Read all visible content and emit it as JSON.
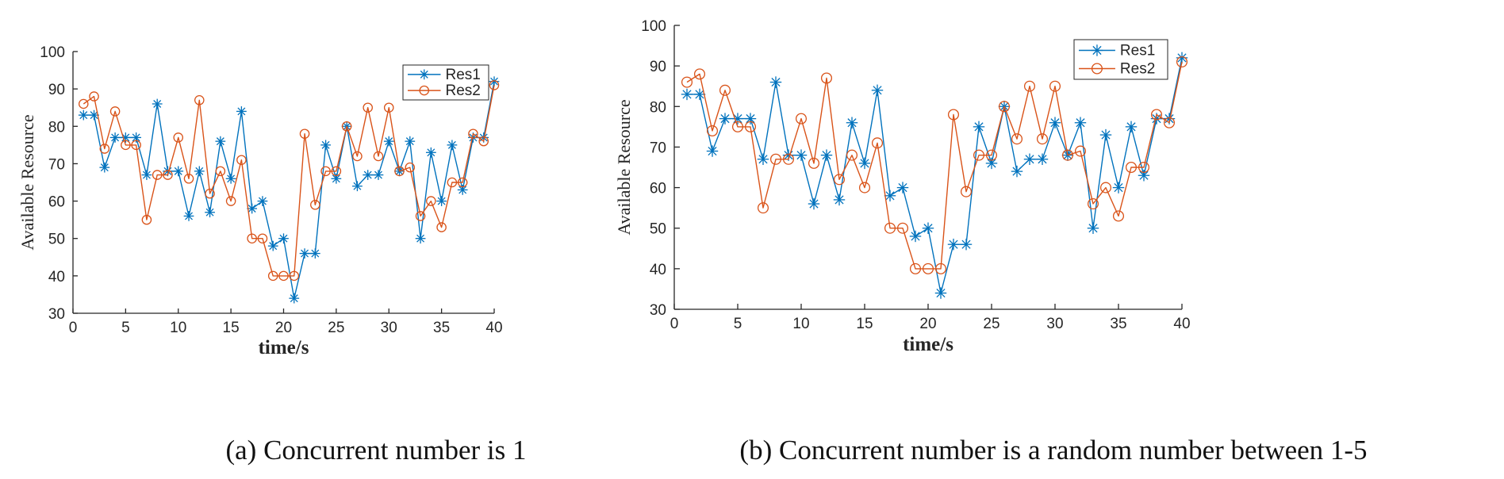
{
  "chart_data": [
    {
      "type": "line",
      "caption": "(a)  Concurrent number is 1",
      "xlabel": "time/s",
      "ylabel": "Available  Resource",
      "xlim": [
        0,
        40
      ],
      "ylim": [
        30,
        100
      ],
      "xticks": [
        "0",
        "5",
        "10",
        "15",
        "20",
        "25",
        "30",
        "35",
        "40"
      ],
      "yticks": [
        "30",
        "40",
        "50",
        "60",
        "70",
        "80",
        "90",
        "100"
      ],
      "grid": false,
      "legend_position": "top-right",
      "x": [
        1,
        2,
        3,
        4,
        5,
        6,
        7,
        8,
        9,
        10,
        11,
        12,
        13,
        14,
        15,
        16,
        17,
        18,
        19,
        20,
        21,
        22,
        23,
        24,
        25,
        26,
        27,
        28,
        29,
        30,
        31,
        32,
        33,
        34,
        35,
        36,
        37,
        38,
        39,
        40
      ],
      "series": [
        {
          "name": "Res1",
          "color": "#0072BD",
          "marker": "asterisk",
          "values": [
            83,
            83,
            69,
            77,
            77,
            77,
            67,
            86,
            68,
            68,
            56,
            68,
            57,
            76,
            66,
            84,
            58,
            60,
            48,
            50,
            34,
            46,
            46,
            75,
            66,
            80,
            64,
            67,
            67,
            76,
            68,
            76,
            50,
            73,
            60,
            75,
            63,
            77,
            77,
            92
          ]
        },
        {
          "name": "Res2",
          "color": "#D95319",
          "marker": "circle",
          "values": [
            86,
            88,
            74,
            84,
            75,
            75,
            55,
            67,
            67,
            77,
            66,
            87,
            62,
            68,
            60,
            71,
            50,
            50,
            40,
            40,
            40,
            78,
            59,
            68,
            68,
            80,
            72,
            85,
            72,
            85,
            68,
            69,
            56,
            60,
            53,
            65,
            65,
            78,
            76,
            91
          ]
        }
      ]
    },
    {
      "type": "line",
      "caption": "(b) Concurrent number is a random number between 1-5",
      "xlabel": "time/s",
      "ylabel": "Available  Resource",
      "xlim": [
        0,
        40
      ],
      "ylim": [
        30,
        100
      ],
      "xticks": [
        "0",
        "5",
        "10",
        "15",
        "20",
        "25",
        "30",
        "35",
        "40"
      ],
      "yticks": [
        "30",
        "40",
        "50",
        "60",
        "70",
        "80",
        "90",
        "100"
      ],
      "grid": false,
      "legend_position": "top-right",
      "x": [
        1,
        2,
        3,
        4,
        5,
        6,
        7,
        8,
        9,
        10,
        11,
        12,
        13,
        14,
        15,
        16,
        17,
        18,
        19,
        20,
        21,
        22,
        23,
        24,
        25,
        26,
        27,
        28,
        29,
        30,
        31,
        32,
        33,
        34,
        35,
        36,
        37,
        38,
        39,
        40
      ],
      "series": [
        {
          "name": "Res1",
          "color": "#0072BD",
          "marker": "asterisk",
          "values": [
            83,
            83,
            69,
            77,
            77,
            77,
            67,
            86,
            68,
            68,
            56,
            68,
            57,
            76,
            66,
            84,
            58,
            60,
            48,
            50,
            34,
            46,
            46,
            75,
            66,
            80,
            64,
            67,
            67,
            76,
            68,
            76,
            50,
            73,
            60,
            75,
            63,
            77,
            77,
            92
          ]
        },
        {
          "name": "Res2",
          "color": "#D95319",
          "marker": "circle",
          "values": [
            86,
            88,
            74,
            84,
            75,
            75,
            55,
            67,
            67,
            77,
            66,
            87,
            62,
            68,
            60,
            71,
            50,
            50,
            40,
            40,
            40,
            78,
            59,
            68,
            68,
            80,
            72,
            85,
            72,
            85,
            68,
            69,
            56,
            60,
            53,
            65,
            65,
            78,
            76,
            91
          ]
        }
      ]
    }
  ]
}
